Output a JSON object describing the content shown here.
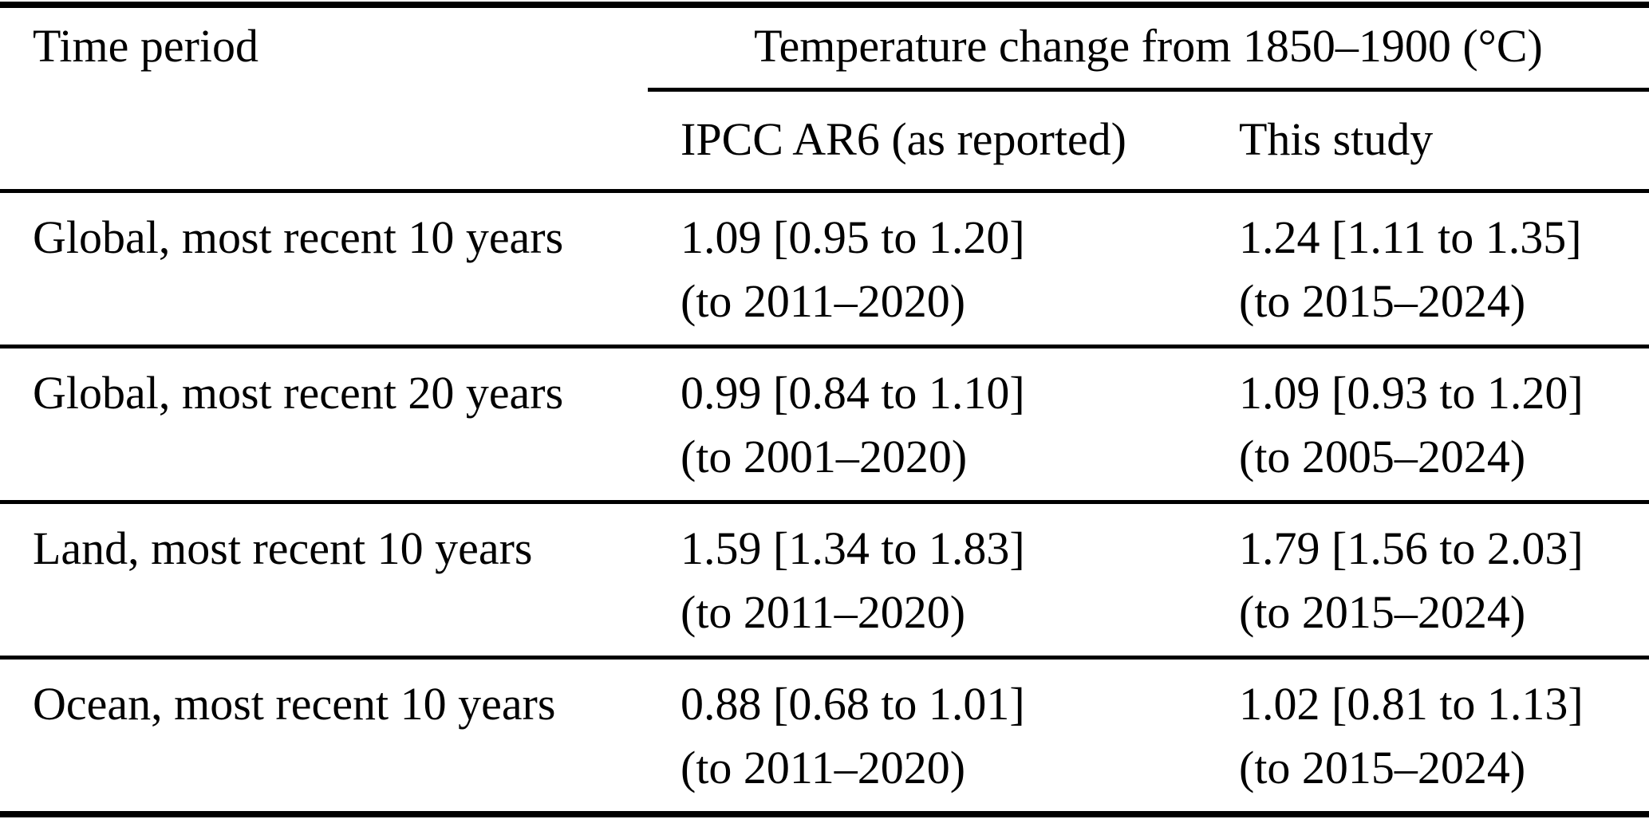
{
  "colors": {
    "background": "#ffffff",
    "text": "#000000",
    "rule": "#000000"
  },
  "table": {
    "col1_header": "Time period",
    "span_header": "Temperature change from 1850–1900 (°C)",
    "sub_headers": [
      "IPCC AR6 (as reported)",
      "This study"
    ],
    "rows": [
      {
        "period": "Global, most recent 10 years",
        "ipcc_value": "1.09 [0.95 to 1.20]",
        "ipcc_note": "(to 2011–2020)",
        "study_value": "1.24 [1.11 to 1.35]",
        "study_note": "(to 2015–2024)"
      },
      {
        "period": "Global, most recent 20 years",
        "ipcc_value": "0.99 [0.84 to 1.10]",
        "ipcc_note": "(to 2001–2020)",
        "study_value": "1.09 [0.93 to 1.20]",
        "study_note": "(to 2005–2024)"
      },
      {
        "period": "Land, most recent 10 years",
        "ipcc_value": "1.59 [1.34 to 1.83]",
        "ipcc_note": "(to 2011–2020)",
        "study_value": "1.79 [1.56 to 2.03]",
        "study_note": "(to 2015–2024)"
      },
      {
        "period": "Ocean, most recent 10 years",
        "ipcc_value": "0.88 [0.68 to 1.01]",
        "ipcc_note": "(to 2011–2020)",
        "study_value": "1.02 [0.81 to 1.13]",
        "study_note": "(to 2015–2024)"
      }
    ]
  }
}
